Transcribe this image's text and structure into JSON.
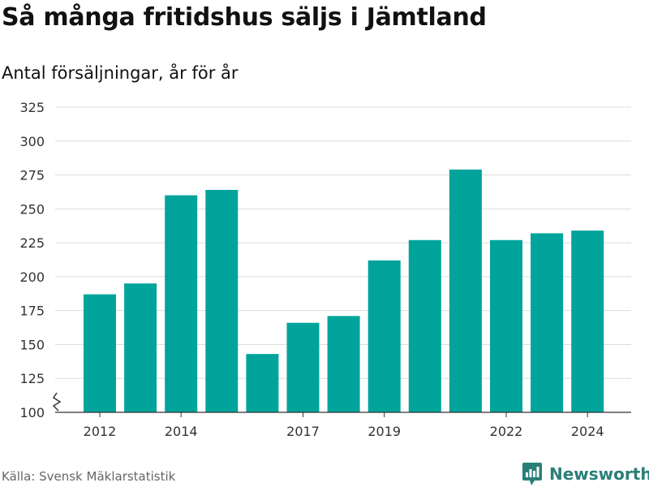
{
  "header": {
    "title": "Så många fritidshus säljs i Jämtland",
    "subtitle": "Antal försäljningar, år för år"
  },
  "footer": {
    "source": "Källa: Svensk Mäklarstatistik",
    "brand": "Newsworthy"
  },
  "colors": {
    "bar": "#00a49a",
    "grid": "#dcdcdc",
    "axis": "#333333",
    "brand": "#2a7f78"
  },
  "icons": {
    "axis_break": "axis-break-icon",
    "brand": "newsworthy-logo-icon"
  },
  "chart_data": {
    "type": "bar",
    "title": "Så många fritidshus säljs i Jämtland",
    "subtitle": "Antal försäljningar, år för år",
    "xlabel": "",
    "ylabel": "",
    "categories": [
      2012,
      2013,
      2014,
      2015,
      2016,
      2017,
      2018,
      2019,
      2020,
      2021,
      2022,
      2023,
      2024
    ],
    "values": [
      187,
      195,
      260,
      264,
      143,
      166,
      171,
      212,
      227,
      279,
      227,
      232,
      234
    ],
    "x_tick_labels": [
      "2012",
      "2014",
      "2017",
      "2019",
      "2022",
      "2024"
    ],
    "y_ticks": [
      100,
      125,
      150,
      175,
      200,
      225,
      250,
      275,
      300,
      325
    ],
    "ylim": [
      100,
      325
    ],
    "y_axis_break": true,
    "grid": true,
    "legend": "none"
  }
}
